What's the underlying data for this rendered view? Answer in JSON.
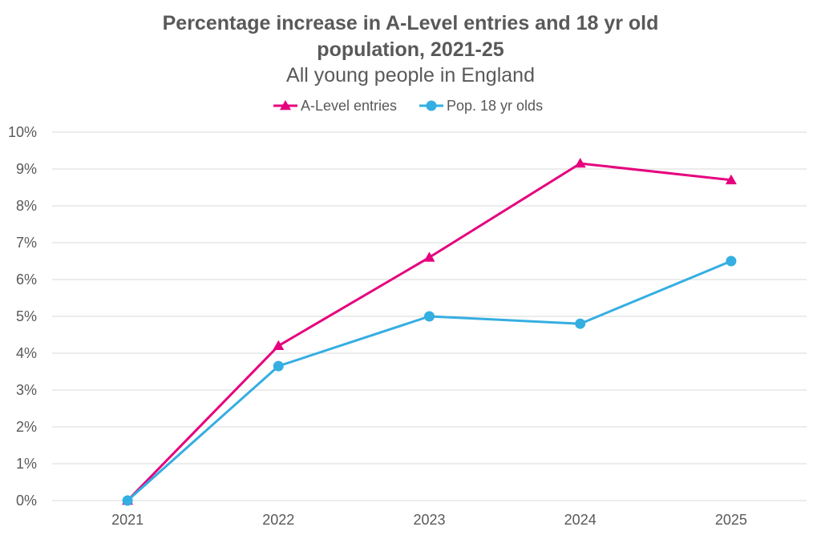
{
  "chart_data": {
    "type": "line",
    "title_lines": [
      "Percentage increase in A-Level entries and 18 yr old",
      "population, 2021-25"
    ],
    "subtitle": "All young people in England",
    "xlabel": "",
    "ylabel": "",
    "categories": [
      "2021",
      "2022",
      "2023",
      "2024",
      "2025"
    ],
    "ylim": [
      0,
      10
    ],
    "yticks": [
      0,
      1,
      2,
      3,
      4,
      5,
      6,
      7,
      8,
      9,
      10
    ],
    "ytick_labels": [
      "0%",
      "1%",
      "2%",
      "3%",
      "4%",
      "5%",
      "6%",
      "7%",
      "8%",
      "9%",
      "10%"
    ],
    "grid": true,
    "legend_position": "top",
    "series": [
      {
        "name": "A-Level entries",
        "values": [
          0,
          4.2,
          6.6,
          9.15,
          8.7
        ],
        "color": "#e6007e",
        "marker": "triangle"
      },
      {
        "name": "Pop. 18 yr olds",
        "values": [
          0,
          3.65,
          5.0,
          4.8,
          6.5
        ],
        "color": "#35aee2",
        "marker": "circle"
      }
    ]
  }
}
